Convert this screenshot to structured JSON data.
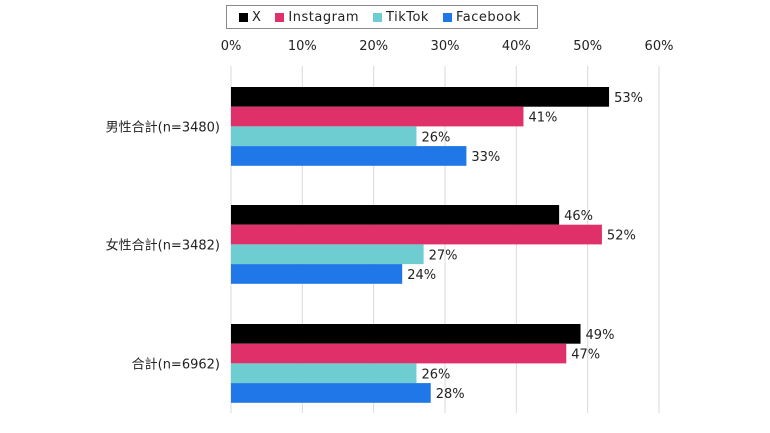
{
  "chart_data": {
    "type": "bar",
    "orientation": "horizontal",
    "categories": [
      "男性合計(n=3480)",
      "女性合計(n=3482)",
      "合計(n=6962)"
    ],
    "series": [
      {
        "name": "X",
        "color": "#000000",
        "values": [
          53,
          46,
          49
        ],
        "labels": [
          "53%",
          "46%",
          "49%"
        ]
      },
      {
        "name": "Instagram",
        "color": "#e0306a",
        "values": [
          41,
          52,
          47
        ],
        "labels": [
          "41%",
          "52%",
          "47%"
        ]
      },
      {
        "name": "TikTok",
        "color": "#6ecdd0",
        "values": [
          26,
          27,
          26
        ],
        "labels": [
          "26%",
          "27%",
          "26%"
        ]
      },
      {
        "name": "Facebook",
        "color": "#1f77e8",
        "values": [
          33,
          24,
          28
        ],
        "labels": [
          "33%",
          "24%",
          "28%"
        ]
      }
    ],
    "xlim": [
      0,
      60
    ],
    "ticks": [
      0,
      10,
      20,
      30,
      40,
      50,
      60
    ],
    "tick_labels": [
      "0%",
      "10%",
      "20%",
      "30%",
      "40%",
      "50%",
      "60%"
    ],
    "grid": "vertical",
    "legend_position": "top",
    "title": "",
    "xlabel": "",
    "ylabel": ""
  }
}
